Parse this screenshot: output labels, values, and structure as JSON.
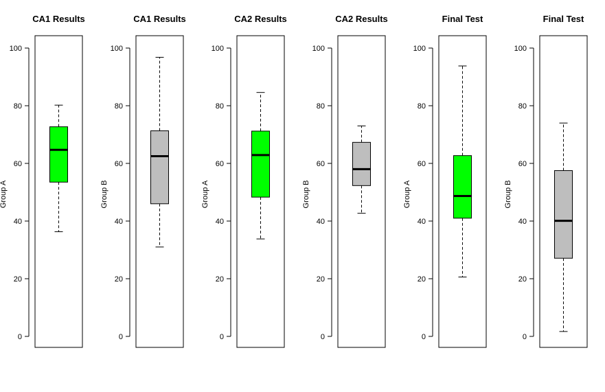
{
  "chart_data": [
    {
      "type": "box",
      "title": "CA1 Results",
      "ylabel": "Group A",
      "ylim": [
        0,
        100
      ],
      "yticks": [
        0,
        20,
        40,
        60,
        80,
        100
      ],
      "color": "#00ff00",
      "stats": {
        "whisker_low": 36.3,
        "q1": 53.5,
        "median": 64.7,
        "q3": 72.7,
        "whisker_high": 80.2
      }
    },
    {
      "type": "box",
      "title": "CA1 Results",
      "ylabel": "Group B",
      "ylim": [
        0,
        100
      ],
      "yticks": [
        0,
        20,
        40,
        60,
        80,
        100
      ],
      "color": "#bebebe",
      "stats": {
        "whisker_low": 31.0,
        "q1": 46.0,
        "median": 62.5,
        "q3": 71.3,
        "whisker_high": 96.8
      }
    },
    {
      "type": "box",
      "title": "CA2 Results",
      "ylabel": "Group A",
      "ylim": [
        0,
        100
      ],
      "yticks": [
        0,
        20,
        40,
        60,
        80,
        100
      ],
      "color": "#00ff00",
      "stats": {
        "whisker_low": 33.8,
        "q1": 48.3,
        "median": 62.9,
        "q3": 71.2,
        "whisker_high": 84.6
      }
    },
    {
      "type": "box",
      "title": "CA2 Results",
      "ylabel": "Group B",
      "ylim": [
        0,
        100
      ],
      "yticks": [
        0,
        20,
        40,
        60,
        80,
        100
      ],
      "color": "#bebebe",
      "stats": {
        "whisker_low": 42.7,
        "q1": 52.3,
        "median": 58.0,
        "q3": 67.3,
        "whisker_high": 73.0
      }
    },
    {
      "type": "box",
      "title": "Final Test",
      "ylabel": "Group A",
      "ylim": [
        0,
        100
      ],
      "yticks": [
        0,
        20,
        40,
        60,
        80,
        100
      ],
      "color": "#00ff00",
      "stats": {
        "whisker_low": 20.6,
        "q1": 41.0,
        "median": 48.7,
        "q3": 62.7,
        "whisker_high": 93.8
      }
    },
    {
      "type": "box",
      "title": "Final Test",
      "ylabel": "Group B",
      "ylim": [
        0,
        100
      ],
      "yticks": [
        0,
        20,
        40,
        60,
        80,
        100
      ],
      "color": "#bebebe",
      "stats": {
        "whisker_low": 1.7,
        "q1": 27.1,
        "median": 40.1,
        "q3": 57.5,
        "whisker_high": 74.0
      }
    }
  ]
}
